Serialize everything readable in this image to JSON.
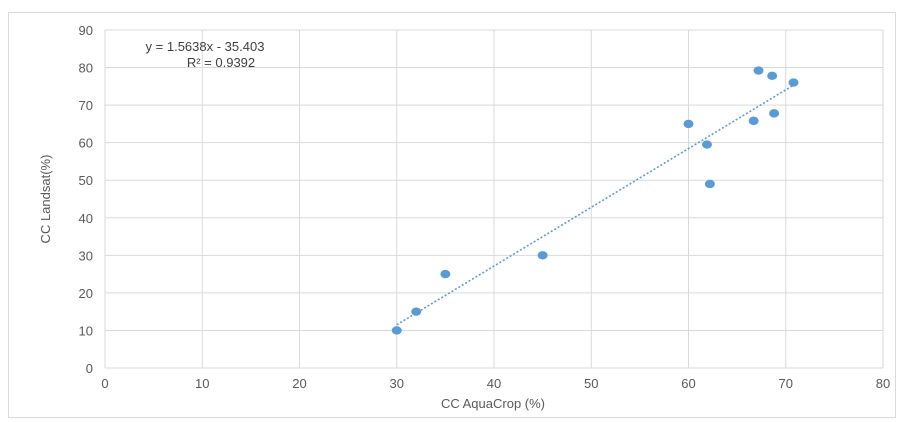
{
  "chart_data": {
    "type": "scatter",
    "xlabel": "CC AquaCrop (%)",
    "ylabel": "CC Landsat(%)",
    "xlim": [
      0,
      80
    ],
    "ylim": [
      0,
      90
    ],
    "x_ticks": [
      "0",
      "10",
      "20",
      "30",
      "40",
      "50",
      "60",
      "70",
      "80"
    ],
    "y_ticks": [
      "0",
      "10",
      "20",
      "30",
      "40",
      "50",
      "60",
      "70",
      "80",
      "90"
    ],
    "grid": true,
    "points": [
      {
        "x": 30,
        "y": 10
      },
      {
        "x": 32,
        "y": 15
      },
      {
        "x": 35,
        "y": 25
      },
      {
        "x": 45,
        "y": 30
      },
      {
        "x": 60,
        "y": 65
      },
      {
        "x": 61.9,
        "y": 59.5
      },
      {
        "x": 62.2,
        "y": 49
      },
      {
        "x": 66.7,
        "y": 65.8
      },
      {
        "x": 67.2,
        "y": 79.2
      },
      {
        "x": 68.6,
        "y": 77.8
      },
      {
        "x": 68.8,
        "y": 67.8
      },
      {
        "x": 70.8,
        "y": 76
      }
    ],
    "trendline": {
      "type": "linear",
      "slope": 1.5638,
      "intercept": -35.403,
      "x_range": [
        30,
        70.8
      ],
      "equation_label": "y = 1.5638x - 35.403",
      "r2_label": "R² = 0.9392"
    },
    "colors": {
      "marker": "#5b9bd5",
      "trendline": "#5b9bd5",
      "grid": "#d9d9d9",
      "text": "#595959"
    }
  }
}
